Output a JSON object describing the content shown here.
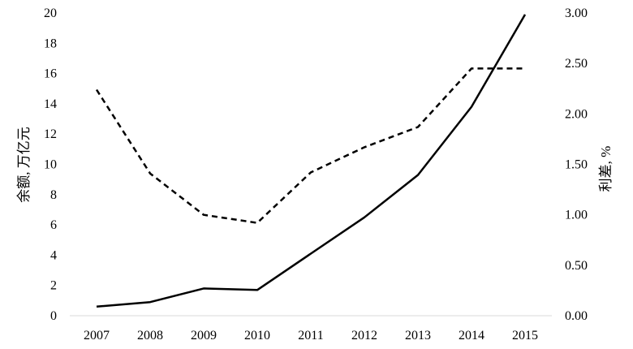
{
  "chart_data": {
    "type": "line",
    "x": [
      "2007",
      "2008",
      "2009",
      "2010",
      "2011",
      "2012",
      "2013",
      "2014",
      "2015"
    ],
    "series": [
      {
        "axis": "left",
        "style": "solid",
        "values": [
          0.6,
          0.9,
          1.8,
          1.7,
          4.1,
          6.5,
          9.3,
          13.8,
          19.9
        ]
      },
      {
        "axis": "right",
        "style": "dashed",
        "values": [
          2.24,
          1.41,
          1.0,
          0.92,
          1.42,
          1.67,
          1.87,
          2.45,
          2.45
        ]
      }
    ],
    "ylabel_left": "余额, 万亿元",
    "ylabel_right": "利差, %",
    "ylim_left": [
      0,
      20
    ],
    "yticks_left": [
      "0",
      "2",
      "4",
      "6",
      "8",
      "10",
      "12",
      "14",
      "16",
      "18",
      "20"
    ],
    "ylim_right": [
      0,
      3
    ],
    "yticks_right": [
      "0.00",
      "0.50",
      "1.00",
      "1.50",
      "2.00",
      "2.50",
      "3.00"
    ],
    "grid": false,
    "legend": "none",
    "line_color": "#000000",
    "axis_color": "#000000"
  }
}
